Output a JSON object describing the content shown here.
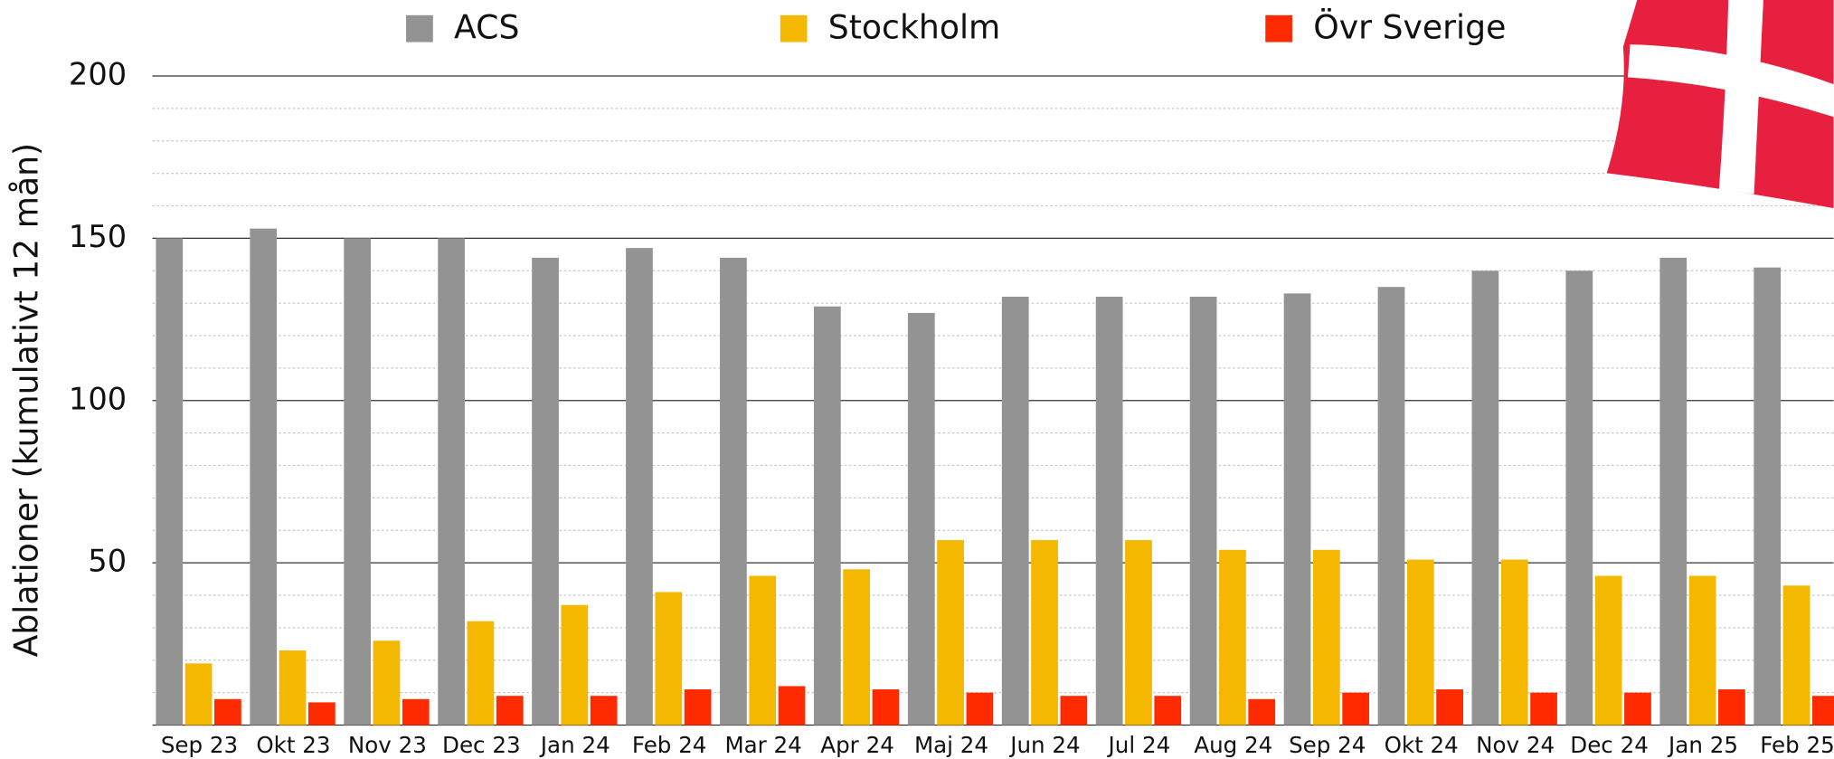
{
  "chart_data": {
    "type": "bar",
    "y_label": "Ablationer (kumulativt 12 mån)",
    "categories": [
      "Sep 23",
      "Okt 23",
      "Nov 23",
      "Dec 23",
      "Jan 24",
      "Feb 24",
      "Mar 24",
      "Apr 24",
      "Maj 24",
      "Jun 24",
      "Jul 24",
      "Aug 24",
      "Sep 24",
      "Okt 24",
      "Nov 24",
      "Dec 24",
      "Jan 25",
      "Feb 25"
    ],
    "series": [
      {
        "name": "ACS",
        "color": "#939393",
        "values": [
          150,
          153,
          150,
          150,
          144,
          147,
          144,
          129,
          127,
          132,
          132,
          132,
          133,
          135,
          140,
          140,
          144,
          141
        ]
      },
      {
        "name": "Stockholm",
        "color": "#f5b800",
        "values": [
          19,
          23,
          26,
          32,
          37,
          41,
          46,
          48,
          57,
          57,
          57,
          54,
          54,
          51,
          51,
          46,
          46,
          43
        ]
      },
      {
        "name": "Övr Sverige",
        "color": "#ff2a00",
        "values": [
          8,
          7,
          8,
          9,
          9,
          11,
          12,
          11,
          10,
          9,
          9,
          8,
          10,
          11,
          10,
          10,
          11,
          9
        ]
      }
    ],
    "ylim": [
      0,
      200
    ],
    "yticks": [
      50,
      100,
      150,
      200
    ],
    "grid": true,
    "minor_grid_step": 10,
    "legend": "top"
  }
}
